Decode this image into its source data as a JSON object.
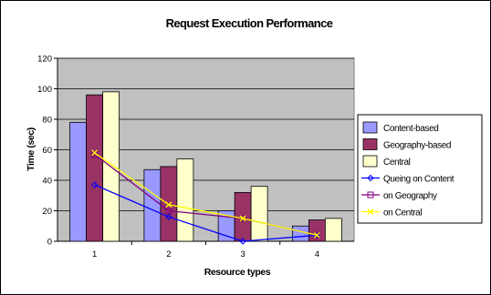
{
  "chart_data": {
    "type": "bar",
    "title": "Request Execution Performance",
    "xlabel": "Resource types",
    "ylabel": "Time (sec)",
    "categories": [
      "1",
      "2",
      "3",
      "4"
    ],
    "ylim": [
      0,
      120
    ],
    "yticks": [
      0,
      20,
      40,
      60,
      80,
      100,
      120
    ],
    "grid": true,
    "legend_position": "right",
    "bar_series": [
      {
        "name": "Content-based",
        "values": [
          78,
          47,
          20,
          10
        ],
        "color": "#9999ff"
      },
      {
        "name": "Geography-based",
        "values": [
          96,
          49,
          32,
          14
        ],
        "color": "#993366"
      },
      {
        "name": "Central",
        "values": [
          98,
          54,
          36,
          15
        ],
        "color": "#ffffcc"
      }
    ],
    "line_series": [
      {
        "name": "Queing on Content",
        "values": [
          37,
          16,
          0,
          4
        ],
        "color": "#0000ff",
        "marker": "diamond"
      },
      {
        "name": "on Geography",
        "values": [
          57,
          20,
          15,
          4
        ],
        "color": "#800080",
        "marker": "square"
      },
      {
        "name": "on Central",
        "values": [
          58,
          24,
          15,
          4
        ],
        "color": "#ffff00",
        "marker": "x"
      }
    ]
  }
}
